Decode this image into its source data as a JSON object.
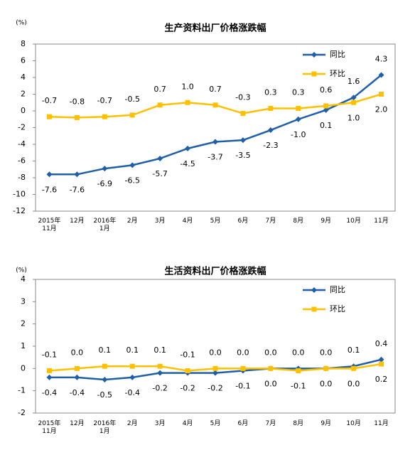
{
  "chart_data": [
    {
      "type": "line",
      "title": "生产资料出厂价格涨跌幅",
      "y_unit": "(%)",
      "categories": [
        "2015年\n11月",
        "12月",
        "2016年\n1月",
        "2月",
        "3月",
        "4月",
        "5月",
        "6月",
        "7月",
        "8月",
        "9月",
        "10月",
        "11月"
      ],
      "series": [
        {
          "name": "同比",
          "color": "#1f5fa8",
          "marker": "diamond",
          "values": [
            -7.6,
            -7.6,
            -6.9,
            -6.5,
            -5.7,
            -4.5,
            -3.7,
            -3.5,
            -2.3,
            -1.0,
            0.1,
            1.6,
            4.3
          ],
          "value_labels": [
            "-7.6",
            "-7.6",
            "-6.9",
            "-6.5",
            "-5.7",
            "-4.5",
            "-3.7",
            "-3.5",
            "-2.3",
            "-1.0",
            "0.1",
            "1.6",
            "4.3"
          ]
        },
        {
          "name": "环比",
          "color": "#ffc000",
          "marker": "square",
          "values": [
            -0.7,
            -0.8,
            -0.7,
            -0.5,
            0.7,
            1.0,
            0.7,
            -0.3,
            0.3,
            0.3,
            0.6,
            1.0,
            2.0
          ],
          "value_labels": [
            "-0.7",
            "-0.8",
            "-0.7",
            "-0.5",
            "0.7",
            "1.0",
            "0.7",
            "-0.3",
            "0.3",
            "0.3",
            "0.6",
            "1.0",
            "2.0"
          ]
        }
      ],
      "ylim": [
        -12,
        8
      ],
      "yticks": [
        -12,
        -10,
        -8,
        -6,
        -4,
        -2,
        0,
        2,
        4,
        6,
        8
      ],
      "grid": false,
      "legend": "upper right"
    },
    {
      "type": "line",
      "title": "生活资料出厂价格涨跌幅",
      "y_unit": "(%)",
      "categories": [
        "2015年\n11月",
        "12月",
        "2016年\n1月",
        "2月",
        "3月",
        "4月",
        "5月",
        "6月",
        "7月",
        "8月",
        "9月",
        "10月",
        "11月"
      ],
      "series": [
        {
          "name": "同比",
          "color": "#1f5fa8",
          "marker": "diamond",
          "values": [
            -0.4,
            -0.4,
            -0.5,
            -0.4,
            -0.2,
            -0.2,
            -0.2,
            -0.1,
            0.0,
            0.0,
            0.0,
            0.1,
            0.4
          ],
          "value_labels": [
            "-0.4",
            "-0.4",
            "-0.5",
            "-0.4",
            "-0.2",
            "-0.2",
            "-0.2",
            "-0.1",
            "0.0",
            "0.0",
            "0.0",
            "0.1",
            "0.4"
          ]
        },
        {
          "name": "环比",
          "color": "#ffc000",
          "marker": "square",
          "values": [
            -0.1,
            0.0,
            0.1,
            0.1,
            0.1,
            -0.1,
            0.0,
            0.0,
            0.0,
            -0.1,
            0.0,
            0.0,
            0.2
          ],
          "value_labels": [
            "-0.1",
            "0.0",
            "0.1",
            "0.1",
            "0.1",
            "-0.1",
            "0.0",
            "0.0",
            "0.0",
            "-0.1",
            "0.0",
            "0.0",
            "0.2"
          ]
        }
      ],
      "ylim": [
        -2,
        4
      ],
      "yticks": [
        -2,
        -1,
        0,
        1,
        2,
        3,
        4
      ],
      "grid": false,
      "legend": "upper right"
    }
  ]
}
